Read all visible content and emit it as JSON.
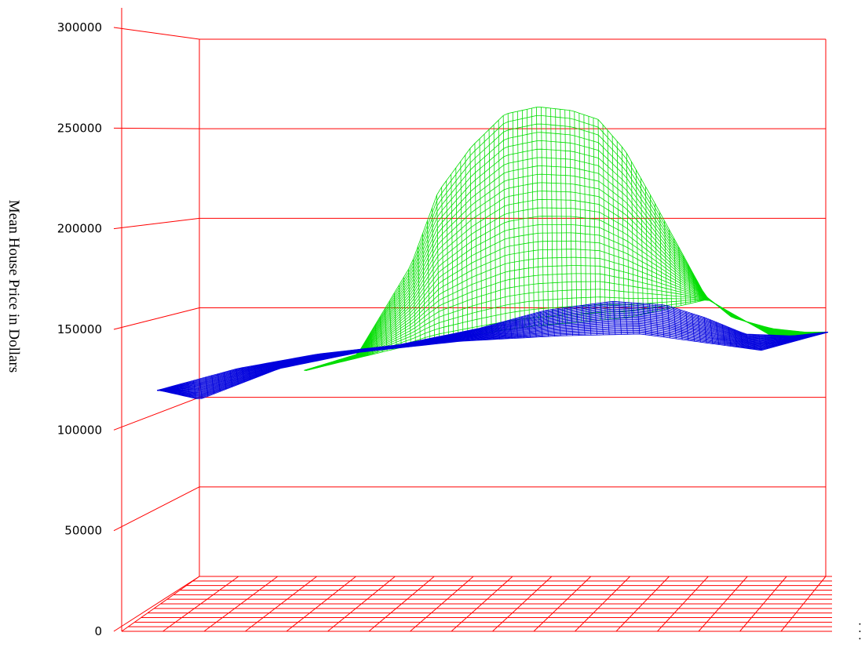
{
  "chart_data": {
    "type": "surface",
    "title": "",
    "ylabel": "Mean House Price in Dollars",
    "xlabel": "",
    "zlabel": "",
    "edge_label": "· · ·",
    "ylim": [
      0,
      300000
    ],
    "yticks": [
      0,
      50000,
      100000,
      150000,
      200000,
      250000,
      300000
    ],
    "ytick_labels": [
      "0",
      "50000",
      "100000",
      "150000",
      "200000",
      "250000",
      "300000"
    ],
    "grid": true,
    "axis_color": "#ff0000",
    "series": [
      {
        "key": "green",
        "color": "#00dd00",
        "profile": [
          [
            0.22,
            117000
          ],
          [
            0.3,
            126000
          ],
          [
            0.38,
            175000
          ],
          [
            0.42,
            215000
          ],
          [
            0.47,
            240000
          ],
          [
            0.52,
            258000
          ],
          [
            0.57,
            262000
          ],
          [
            0.62,
            260000
          ],
          [
            0.66,
            255000
          ],
          [
            0.7,
            238000
          ],
          [
            0.74,
            212000
          ],
          [
            0.78,
            185000
          ],
          [
            0.82,
            158000
          ],
          [
            0.86,
            146000
          ],
          [
            0.92,
            140000
          ],
          [
            0.97,
            138000
          ],
          [
            1.0,
            138000
          ]
        ],
        "base": [
          [
            0.22,
            117000
          ],
          [
            0.4,
            133000
          ],
          [
            0.55,
            141000
          ],
          [
            0.7,
            146000
          ],
          [
            0.82,
            156000
          ],
          [
            0.92,
            135000
          ],
          [
            1.0,
            138000
          ]
        ]
      },
      {
        "key": "blue",
        "color": "#0000dd",
        "profile": [
          [
            0.0,
            106000
          ],
          [
            0.12,
            118000
          ],
          [
            0.24,
            126000
          ],
          [
            0.36,
            131000
          ],
          [
            0.48,
            140000
          ],
          [
            0.58,
            150000
          ],
          [
            0.68,
            155000
          ],
          [
            0.76,
            153000
          ],
          [
            0.82,
            146000
          ],
          [
            0.88,
            137000
          ],
          [
            0.95,
            136000
          ],
          [
            1.0,
            138000
          ]
        ],
        "base": [
          [
            0.0,
            106000
          ],
          [
            0.06,
            101000
          ],
          [
            0.18,
            118000
          ],
          [
            0.3,
            127000
          ],
          [
            0.45,
            133000
          ],
          [
            0.6,
            136000
          ],
          [
            0.72,
            137000
          ],
          [
            0.82,
            132000
          ],
          [
            0.9,
            128000
          ],
          [
            0.96,
            134000
          ],
          [
            1.0,
            138000
          ]
        ]
      }
    ]
  }
}
